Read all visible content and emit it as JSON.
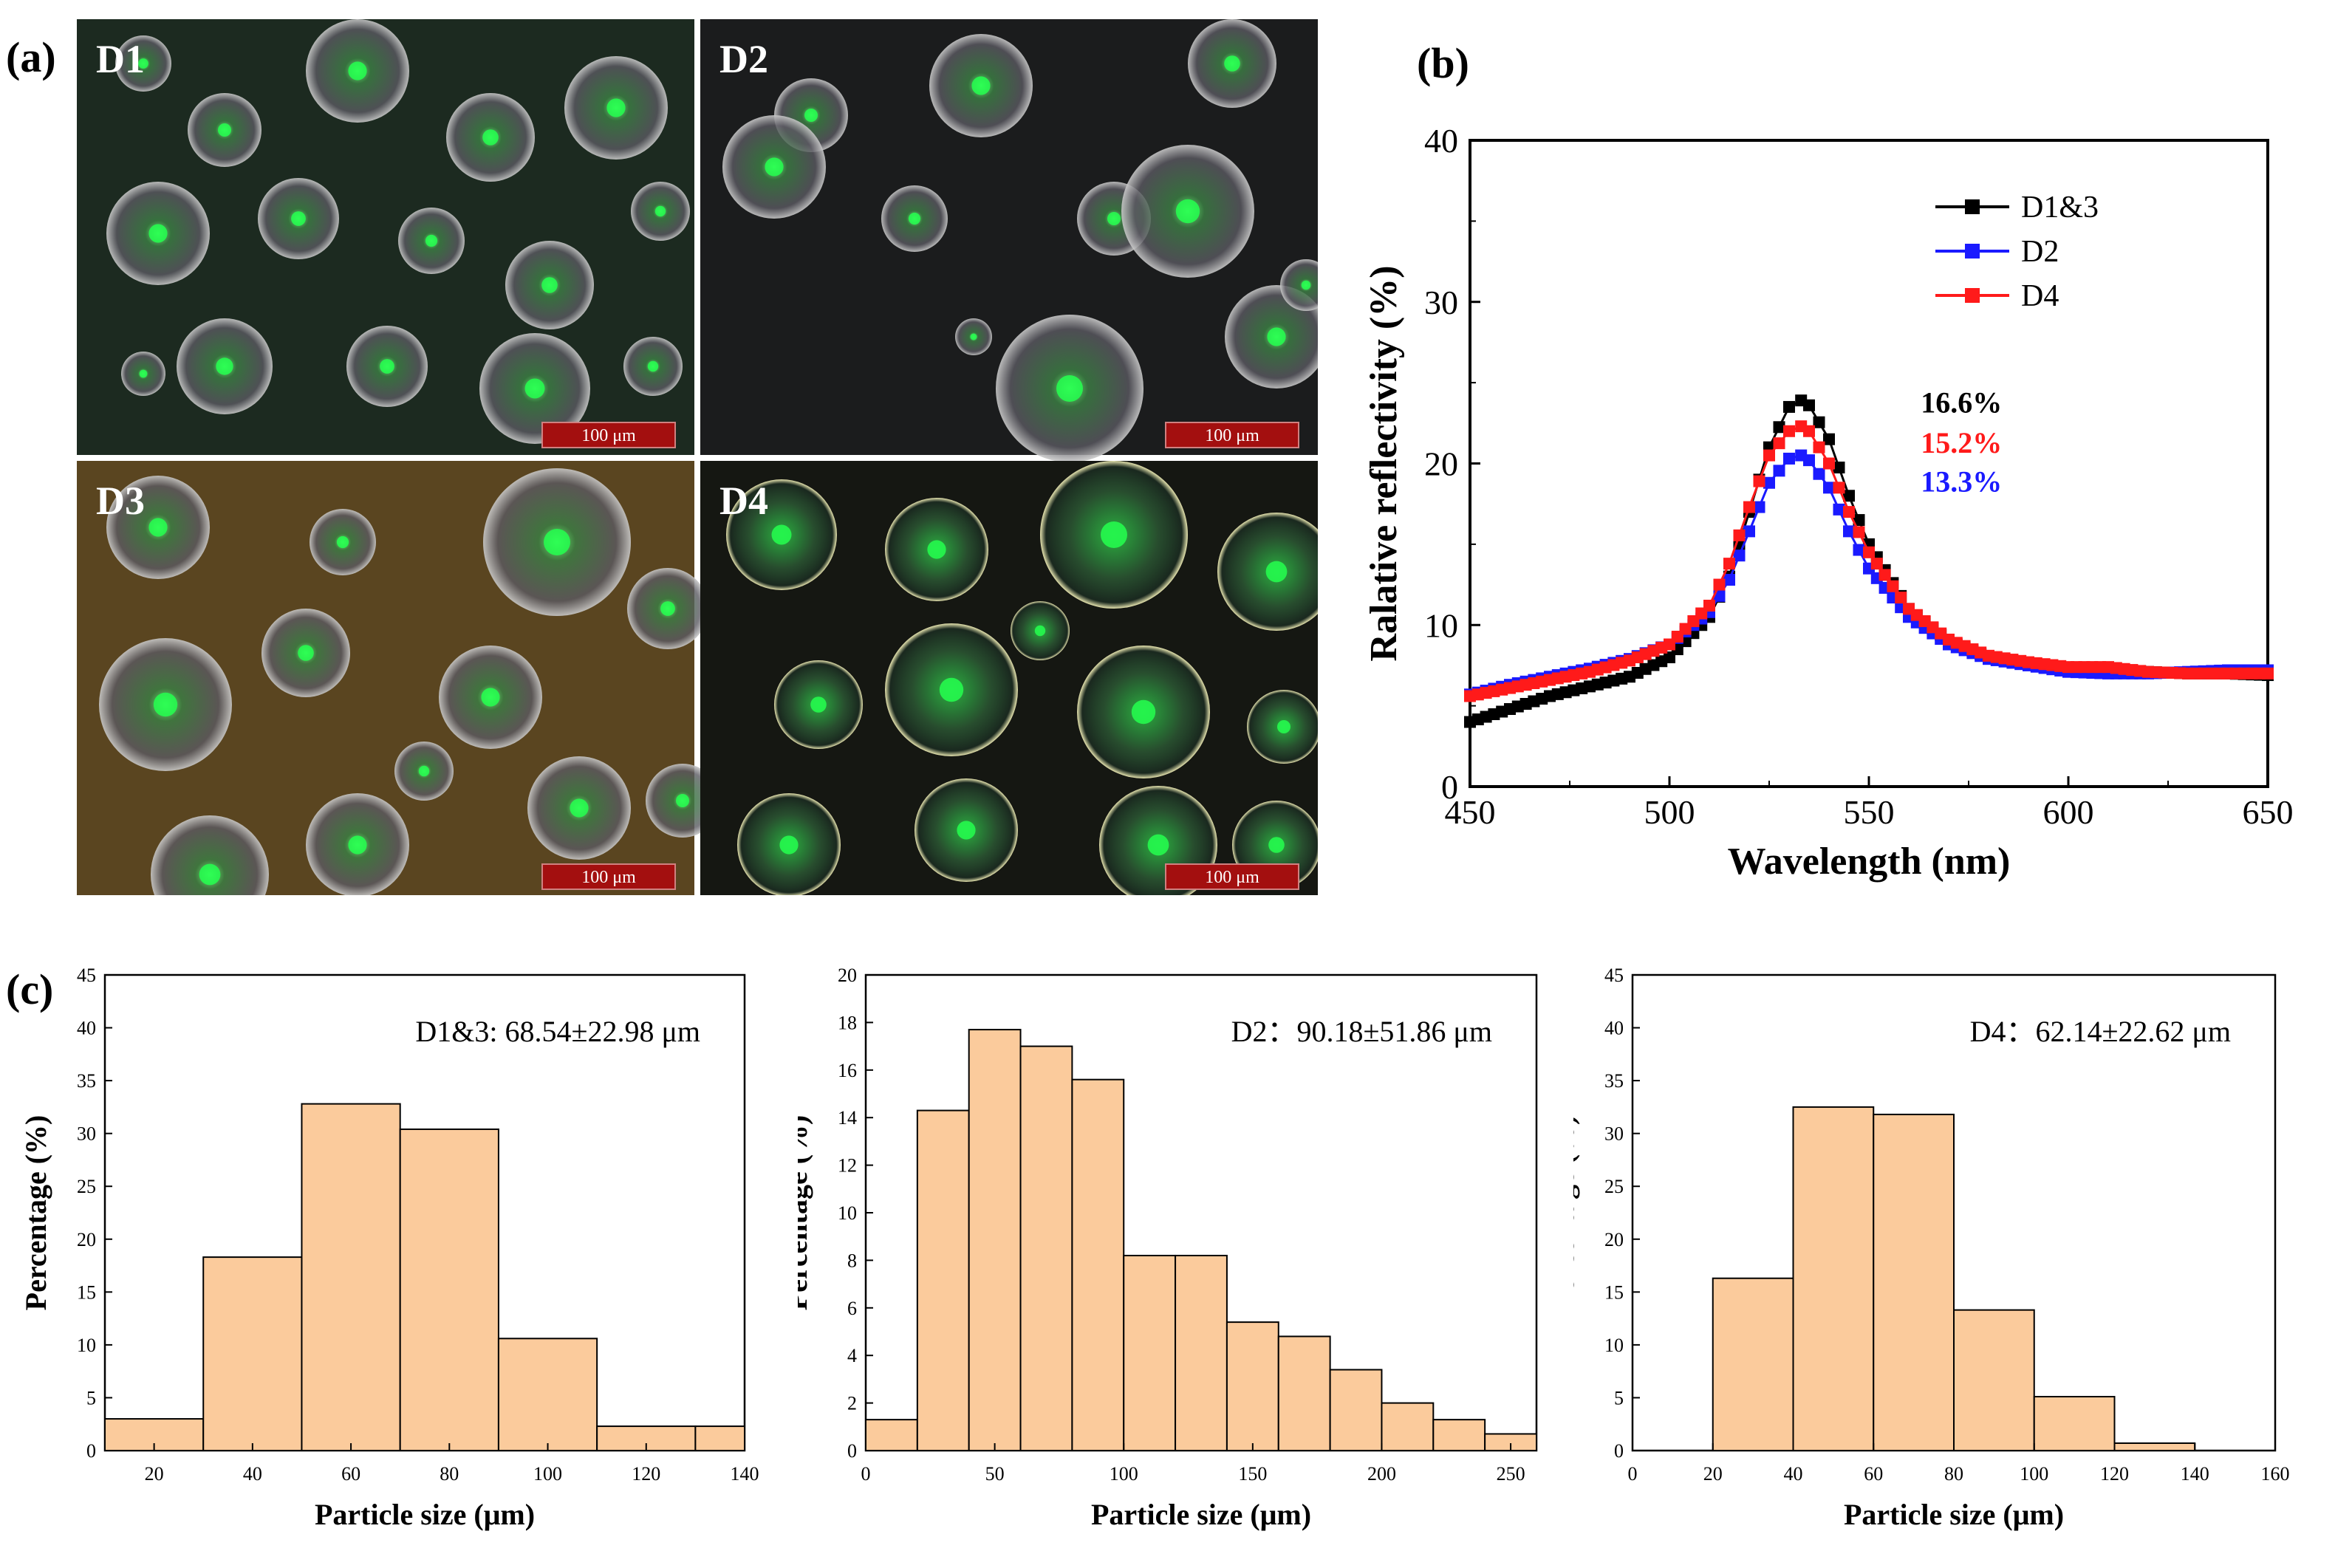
{
  "panels": {
    "a": "(a)",
    "b": "(b)",
    "c": "(c)"
  },
  "micrographs": [
    {
      "label": "D1",
      "scale_bar": "100 μm",
      "background": "#1c2a20",
      "sphere_tint": "#3a6b3e"
    },
    {
      "label": "D2",
      "scale_bar": "100 μm",
      "background": "#1b1c1d",
      "sphere_tint": "#5b5a4c"
    },
    {
      "label": "D3",
      "scale_bar": "100 μm",
      "background": "#5a4520",
      "sphere_tint": "#3e3a30"
    },
    {
      "label": "D4",
      "scale_bar": "100 μm",
      "background": "#151712",
      "sphere_tint": "#1c4a2a"
    }
  ],
  "colors": {
    "hist_fill": "#fbcb9c",
    "scale_bar": "#a30f0f",
    "d13": "#000000",
    "d2": "#1a1aff",
    "d4": "#ff1a1a",
    "glow": "#25ff4f"
  },
  "chart_data": [
    {
      "type": "line",
      "xlabel": "Wavelength (nm)",
      "ylabel": "Ralative reflectivity (%)",
      "xlim": [
        450,
        650
      ],
      "ylim": [
        0,
        40
      ],
      "xticks": [
        450,
        500,
        550,
        600,
        650
      ],
      "yticks": [
        0,
        10,
        20,
        30,
        40
      ],
      "legend_position": "top-right",
      "series": [
        {
          "name": "D1&3",
          "color": "#000000",
          "x": [
            450,
            460,
            470,
            480,
            490,
            500,
            510,
            515,
            520,
            525,
            530,
            533,
            535,
            540,
            545,
            550,
            560,
            570,
            580,
            590,
            600,
            610,
            620,
            630,
            640,
            650
          ],
          "y": [
            4.0,
            4.8,
            5.6,
            6.2,
            6.8,
            8.0,
            10.5,
            13.0,
            17.0,
            21.0,
            23.5,
            23.9,
            23.6,
            21.5,
            18.0,
            15.0,
            11.0,
            9.0,
            8.0,
            7.6,
            7.3,
            7.3,
            7.1,
            7.0,
            7.0,
            6.9
          ]
        },
        {
          "name": "D2",
          "color": "#1a1aff",
          "x": [
            450,
            460,
            470,
            480,
            490,
            500,
            510,
            515,
            520,
            525,
            530,
            533,
            535,
            540,
            545,
            550,
            560,
            570,
            580,
            590,
            600,
            610,
            620,
            630,
            640,
            650
          ],
          "y": [
            5.7,
            6.3,
            6.8,
            7.3,
            7.9,
            8.8,
            10.8,
            12.8,
            15.8,
            18.8,
            20.3,
            20.5,
            20.2,
            18.5,
            15.8,
            13.5,
            10.5,
            8.8,
            7.9,
            7.5,
            7.1,
            7.0,
            7.0,
            7.1,
            7.2,
            7.2
          ]
        },
        {
          "name": "D4",
          "color": "#ff1a1a",
          "x": [
            450,
            460,
            470,
            480,
            490,
            500,
            510,
            515,
            520,
            525,
            530,
            533,
            535,
            540,
            545,
            550,
            560,
            570,
            580,
            590,
            600,
            610,
            620,
            630,
            640,
            650
          ],
          "y": [
            5.6,
            6.1,
            6.6,
            7.1,
            7.8,
            8.8,
            11.2,
            13.8,
            17.3,
            20.5,
            22.0,
            22.3,
            22.0,
            20.0,
            17.0,
            14.5,
            11.0,
            9.1,
            8.1,
            7.7,
            7.4,
            7.4,
            7.1,
            7.0,
            7.0,
            7.0
          ]
        }
      ],
      "annotations": [
        {
          "text": "16.6%",
          "color": "#000000",
          "x": 563,
          "y": 23.8
        },
        {
          "text": "15.2%",
          "color": "#ff1a1a",
          "x": 563,
          "y": 21.3
        },
        {
          "text": "13.3%",
          "color": "#1a1aff",
          "x": 563,
          "y": 18.9
        }
      ]
    },
    {
      "type": "bar",
      "title": "D1&3: 68.54±22.98 μm",
      "xlabel": "Particle size (μm)",
      "ylabel": "Percentage (%)",
      "xlim": [
        10,
        140
      ],
      "ylim": [
        0,
        45
      ],
      "xticks": [
        20,
        40,
        60,
        80,
        100,
        120,
        140
      ],
      "yticks": [
        0,
        5,
        10,
        15,
        20,
        25,
        30,
        35,
        40,
        45
      ],
      "bin_edges": [
        10,
        30,
        50,
        70,
        90,
        110,
        130,
        150
      ],
      "values": [
        3.0,
        18.3,
        32.8,
        30.4,
        10.6,
        2.3,
        2.3
      ]
    },
    {
      "type": "bar",
      "title": "D2：90.18±51.86 μm",
      "xlabel": "Particle size (μm)",
      "ylabel": "Percentage (%)",
      "xlim": [
        0,
        260
      ],
      "ylim": [
        0,
        20
      ],
      "xticks": [
        0,
        50,
        100,
        150,
        200,
        250
      ],
      "yticks": [
        0,
        2,
        4,
        6,
        8,
        10,
        12,
        14,
        16,
        18,
        20
      ],
      "bin_edges": [
        0,
        20,
        40,
        60,
        80,
        100,
        120,
        140,
        160,
        180,
        200,
        220,
        240,
        260
      ],
      "values": [
        1.3,
        14.3,
        17.7,
        17.0,
        15.6,
        8.2,
        8.2,
        5.4,
        4.8,
        3.4,
        2.0,
        1.3,
        0.7
      ]
    },
    {
      "type": "bar",
      "title": "D4：62.14±22.62 μm",
      "xlabel": "Particle size (μm)",
      "ylabel": "Percentage (%)",
      "xlim": [
        0,
        160
      ],
      "ylim": [
        0,
        45
      ],
      "xticks": [
        0,
        20,
        40,
        60,
        80,
        100,
        120,
        140,
        160
      ],
      "yticks": [
        0,
        5,
        10,
        15,
        20,
        25,
        30,
        35,
        40,
        45
      ],
      "bin_edges": [
        20,
        40,
        60,
        80,
        100,
        120,
        140
      ],
      "values": [
        16.3,
        32.5,
        31.8,
        13.3,
        5.1,
        0.7
      ]
    }
  ]
}
